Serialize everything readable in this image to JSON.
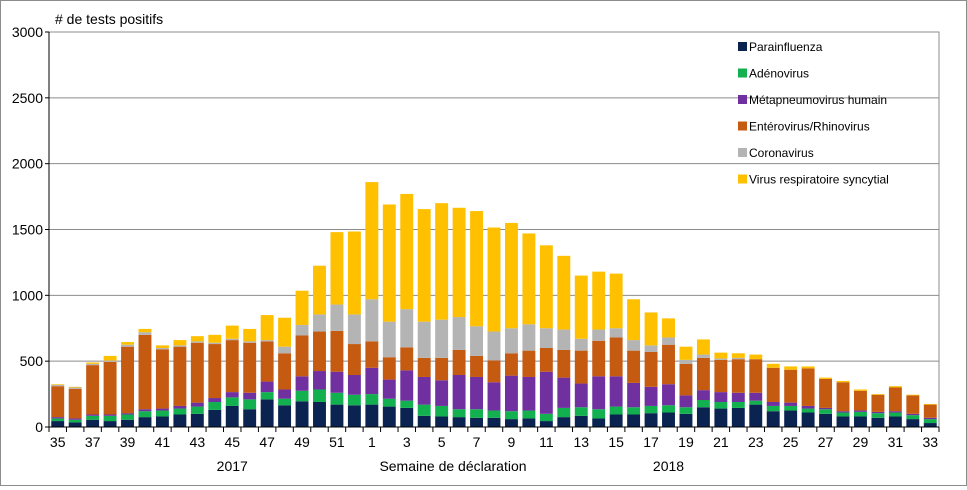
{
  "chart_data": {
    "type": "bar",
    "stacked": true,
    "ylabel": "# de tests positifs",
    "xlabel": "Semaine de déclaration",
    "ylim": [
      0,
      3000
    ],
    "yticks": [
      0,
      500,
      1000,
      1500,
      2000,
      2500,
      3000
    ],
    "grid": true,
    "legend_position": "top-right",
    "year_labels": [
      {
        "label": "2017",
        "at_week_index": 10
      },
      {
        "label": "2018",
        "at_week_index": 35
      }
    ],
    "categories": [
      "35",
      "36",
      "37",
      "38",
      "39",
      "40",
      "41",
      "42",
      "43",
      "44",
      "45",
      "46",
      "47",
      "48",
      "49",
      "50",
      "51",
      "52",
      "1",
      "2",
      "3",
      "4",
      "5",
      "6",
      "7",
      "8",
      "9",
      "10",
      "11",
      "12",
      "13",
      "14",
      "15",
      "16",
      "17",
      "18",
      "19",
      "20",
      "21",
      "22",
      "23",
      "24",
      "25",
      "26",
      "27",
      "28",
      "29",
      "30",
      "31",
      "32",
      "33"
    ],
    "tick_labels": [
      "35",
      "",
      "37",
      "",
      "39",
      "",
      "41",
      "",
      "43",
      "",
      "45",
      "",
      "47",
      "",
      "49",
      "",
      "51",
      "",
      "1",
      "",
      "3",
      "",
      "5",
      "",
      "7",
      "",
      "9",
      "",
      "11",
      "",
      "13",
      "",
      "15",
      "",
      "17",
      "",
      "19",
      "",
      "21",
      "",
      "23",
      "",
      "25",
      "",
      "27",
      "",
      "29",
      "",
      "31",
      "",
      "33"
    ],
    "series": [
      {
        "name": "Parainfluenza",
        "color": "#0b2350",
        "values": [
          45,
          35,
          55,
          45,
          55,
          75,
          80,
          95,
          100,
          130,
          160,
          135,
          210,
          165,
          195,
          190,
          170,
          165,
          170,
          155,
          145,
          85,
          80,
          75,
          70,
          70,
          60,
          65,
          45,
          75,
          85,
          65,
          95,
          95,
          105,
          110,
          100,
          150,
          140,
          145,
          170,
          120,
          125,
          110,
          100,
          80,
          80,
          70,
          80,
          60,
          30
        ]
      },
      {
        "name": "Adénovirus",
        "color": "#12b04f",
        "values": [
          20,
          20,
          30,
          40,
          40,
          45,
          45,
          45,
          55,
          60,
          65,
          75,
          55,
          50,
          80,
          95,
          90,
          80,
          80,
          60,
          55,
          85,
          80,
          60,
          65,
          55,
          60,
          60,
          55,
          70,
          65,
          70,
          60,
          55,
          55,
          55,
          50,
          55,
          50,
          45,
          30,
          40,
          35,
          30,
          35,
          30,
          35,
          35,
          30,
          30,
          30
        ]
      },
      {
        "name": "Métapneumovirus humain",
        "color": "#7030a0",
        "values": [
          10,
          10,
          10,
          10,
          10,
          15,
          15,
          20,
          30,
          30,
          40,
          50,
          80,
          70,
          110,
          140,
          160,
          150,
          200,
          145,
          230,
          210,
          195,
          260,
          245,
          215,
          270,
          255,
          320,
          230,
          180,
          250,
          230,
          185,
          145,
          160,
          90,
          75,
          75,
          70,
          60,
          30,
          25,
          20,
          10,
          10,
          10,
          10,
          10,
          10,
          10
        ]
      },
      {
        "name": "Entérovirus/Rhinovirus",
        "color": "#c55a11",
        "values": [
          235,
          225,
          375,
          400,
          505,
          565,
          450,
          450,
          455,
          410,
          395,
          380,
          305,
          275,
          310,
          300,
          310,
          235,
          200,
          170,
          175,
          145,
          170,
          190,
          160,
          165,
          170,
          200,
          180,
          210,
          250,
          270,
          295,
          245,
          265,
          300,
          240,
          245,
          245,
          255,
          255,
          260,
          250,
          285,
          220,
          220,
          150,
          130,
          180,
          140,
          100
        ]
      },
      {
        "name": "Coronavirus",
        "color": "#b4b4b4",
        "values": [
          10,
          10,
          10,
          10,
          15,
          20,
          10,
          10,
          10,
          10,
          10,
          10,
          10,
          50,
          80,
          130,
          200,
          225,
          320,
          270,
          290,
          275,
          290,
          250,
          225,
          220,
          190,
          200,
          150,
          155,
          90,
          85,
          70,
          80,
          50,
          55,
          30,
          25,
          10,
          10,
          0,
          0,
          0,
          0,
          0,
          0,
          0,
          0,
          0,
          0,
          0
        ]
      },
      {
        "name": "Virus respiratoire syncytial",
        "color": "#ffc000",
        "values": [
          5,
          5,
          10,
          35,
          20,
          25,
          20,
          40,
          40,
          60,
          100,
          95,
          190,
          220,
          260,
          370,
          550,
          630,
          890,
          890,
          875,
          855,
          885,
          830,
          875,
          790,
          800,
          690,
          630,
          560,
          480,
          440,
          415,
          310,
          250,
          145,
          100,
          115,
          45,
          35,
          35,
          30,
          25,
          15,
          10,
          10,
          10,
          5,
          10,
          5,
          5
        ]
      }
    ]
  }
}
